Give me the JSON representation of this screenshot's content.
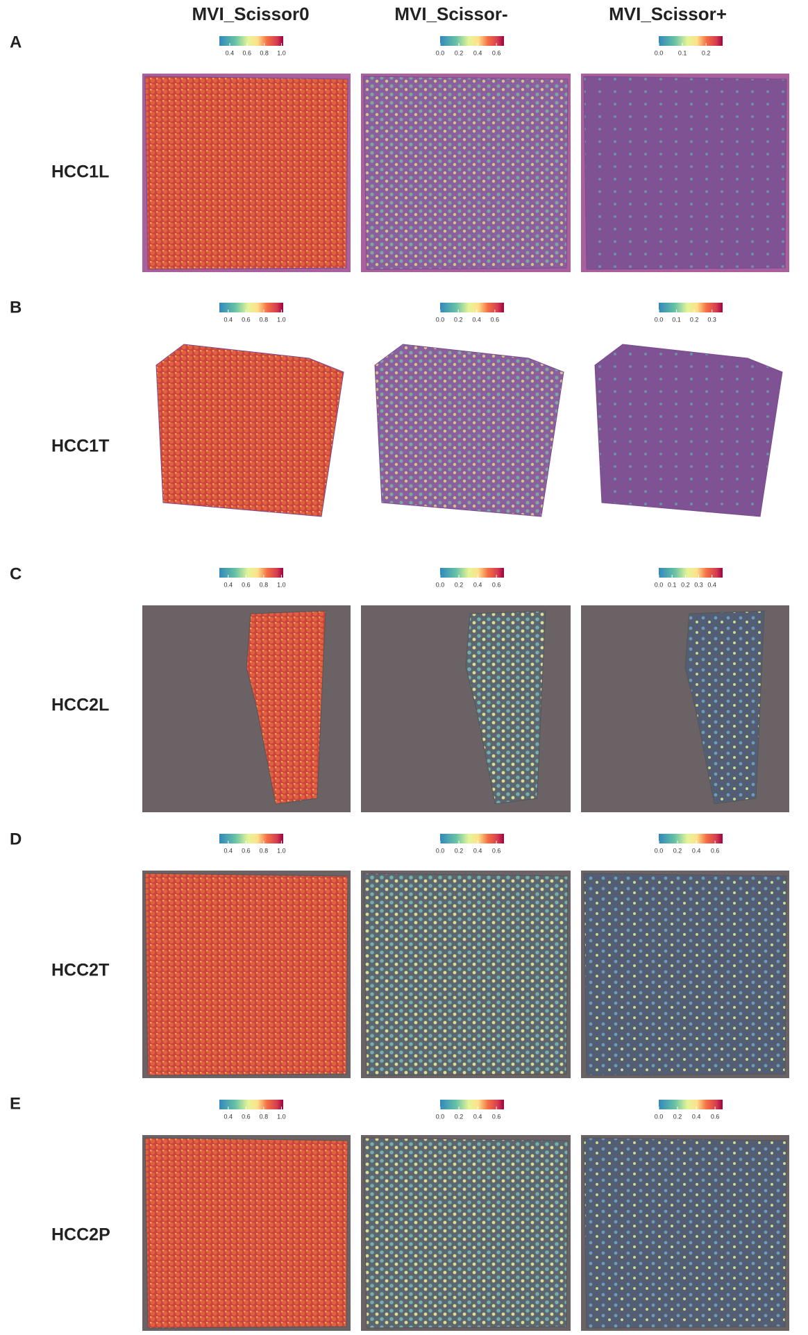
{
  "columns": [
    "MVI_Scissor0",
    "MVI_Scissor-",
    "MVI_Scissor+"
  ],
  "panels": [
    {
      "letter": "A",
      "label": "HCC1L",
      "colorbars": [
        {
          "lim": [
            0.28,
            1.02
          ],
          "ticks": [
            0.4,
            0.6,
            0.8,
            {
              "value": 1,
              "label": "1.0"
            }
          ]
        },
        {
          "lim": [
            0,
            0.68
          ],
          "ticks": [
            {
              "value": 0,
              "label": "0.0"
            },
            0.2,
            0.4,
            0.6
          ]
        },
        {
          "lim": [
            0,
            0.27
          ],
          "ticks": [
            {
              "value": 0,
              "label": "0.0"
            },
            0.1,
            0.2
          ]
        }
      ]
    },
    {
      "letter": "B",
      "label": "HCC1T",
      "colorbars": [
        {
          "lim": [
            0.3,
            1.02
          ],
          "ticks": [
            0.4,
            0.6,
            0.8,
            {
              "value": 1,
              "label": "1.0"
            }
          ]
        },
        {
          "lim": [
            0,
            0.7
          ],
          "ticks": [
            {
              "value": 0,
              "label": "0.0"
            },
            0.2,
            0.4,
            0.6
          ]
        },
        {
          "lim": [
            0,
            0.36
          ],
          "ticks": [
            {
              "value": 0,
              "label": "0.0"
            },
            0.1,
            0.2,
            0.3
          ]
        }
      ]
    },
    {
      "letter": "C",
      "label": "HCC2L",
      "colorbars": [
        {
          "lim": [
            0.3,
            1.02
          ],
          "ticks": [
            0.4,
            0.6,
            0.8,
            {
              "value": 1,
              "label": "1.0"
            }
          ]
        },
        {
          "lim": [
            0,
            0.68
          ],
          "ticks": [
            {
              "value": 0,
              "label": "0.0"
            },
            0.2,
            0.4,
            0.6
          ]
        },
        {
          "lim": [
            0,
            0.48
          ],
          "ticks": [
            {
              "value": 0,
              "label": "0.0"
            },
            0.1,
            0.2,
            0.3,
            0.4
          ]
        }
      ]
    },
    {
      "letter": "D",
      "label": "HCC2T",
      "colorbars": [
        {
          "lim": [
            0.3,
            1.02
          ],
          "ticks": [
            0.4,
            0.6,
            0.8,
            {
              "value": 1,
              "label": "1.0"
            }
          ]
        },
        {
          "lim": [
            0,
            0.68
          ],
          "ticks": [
            {
              "value": 0,
              "label": "0.0"
            },
            0.2,
            0.4,
            0.6
          ]
        },
        {
          "lim": [
            0,
            0.68
          ],
          "ticks": [
            {
              "value": 0,
              "label": "0.0"
            },
            0.2,
            0.4,
            0.6
          ]
        }
      ]
    },
    {
      "letter": "E",
      "label": "HCC2P",
      "colorbars": [
        {
          "lim": [
            0.3,
            1.02
          ],
          "ticks": [
            0.4,
            0.6,
            0.8,
            {
              "value": 1,
              "label": "1.0"
            }
          ]
        },
        {
          "lim": [
            0,
            0.68
          ],
          "ticks": [
            {
              "value": 0,
              "label": "0.0"
            },
            0.2,
            0.4,
            0.6
          ]
        },
        {
          "lim": [
            0,
            0.68
          ],
          "ticks": [
            {
              "value": 0,
              "label": "0.0"
            },
            0.2,
            0.4,
            0.6
          ]
        }
      ]
    }
  ]
}
